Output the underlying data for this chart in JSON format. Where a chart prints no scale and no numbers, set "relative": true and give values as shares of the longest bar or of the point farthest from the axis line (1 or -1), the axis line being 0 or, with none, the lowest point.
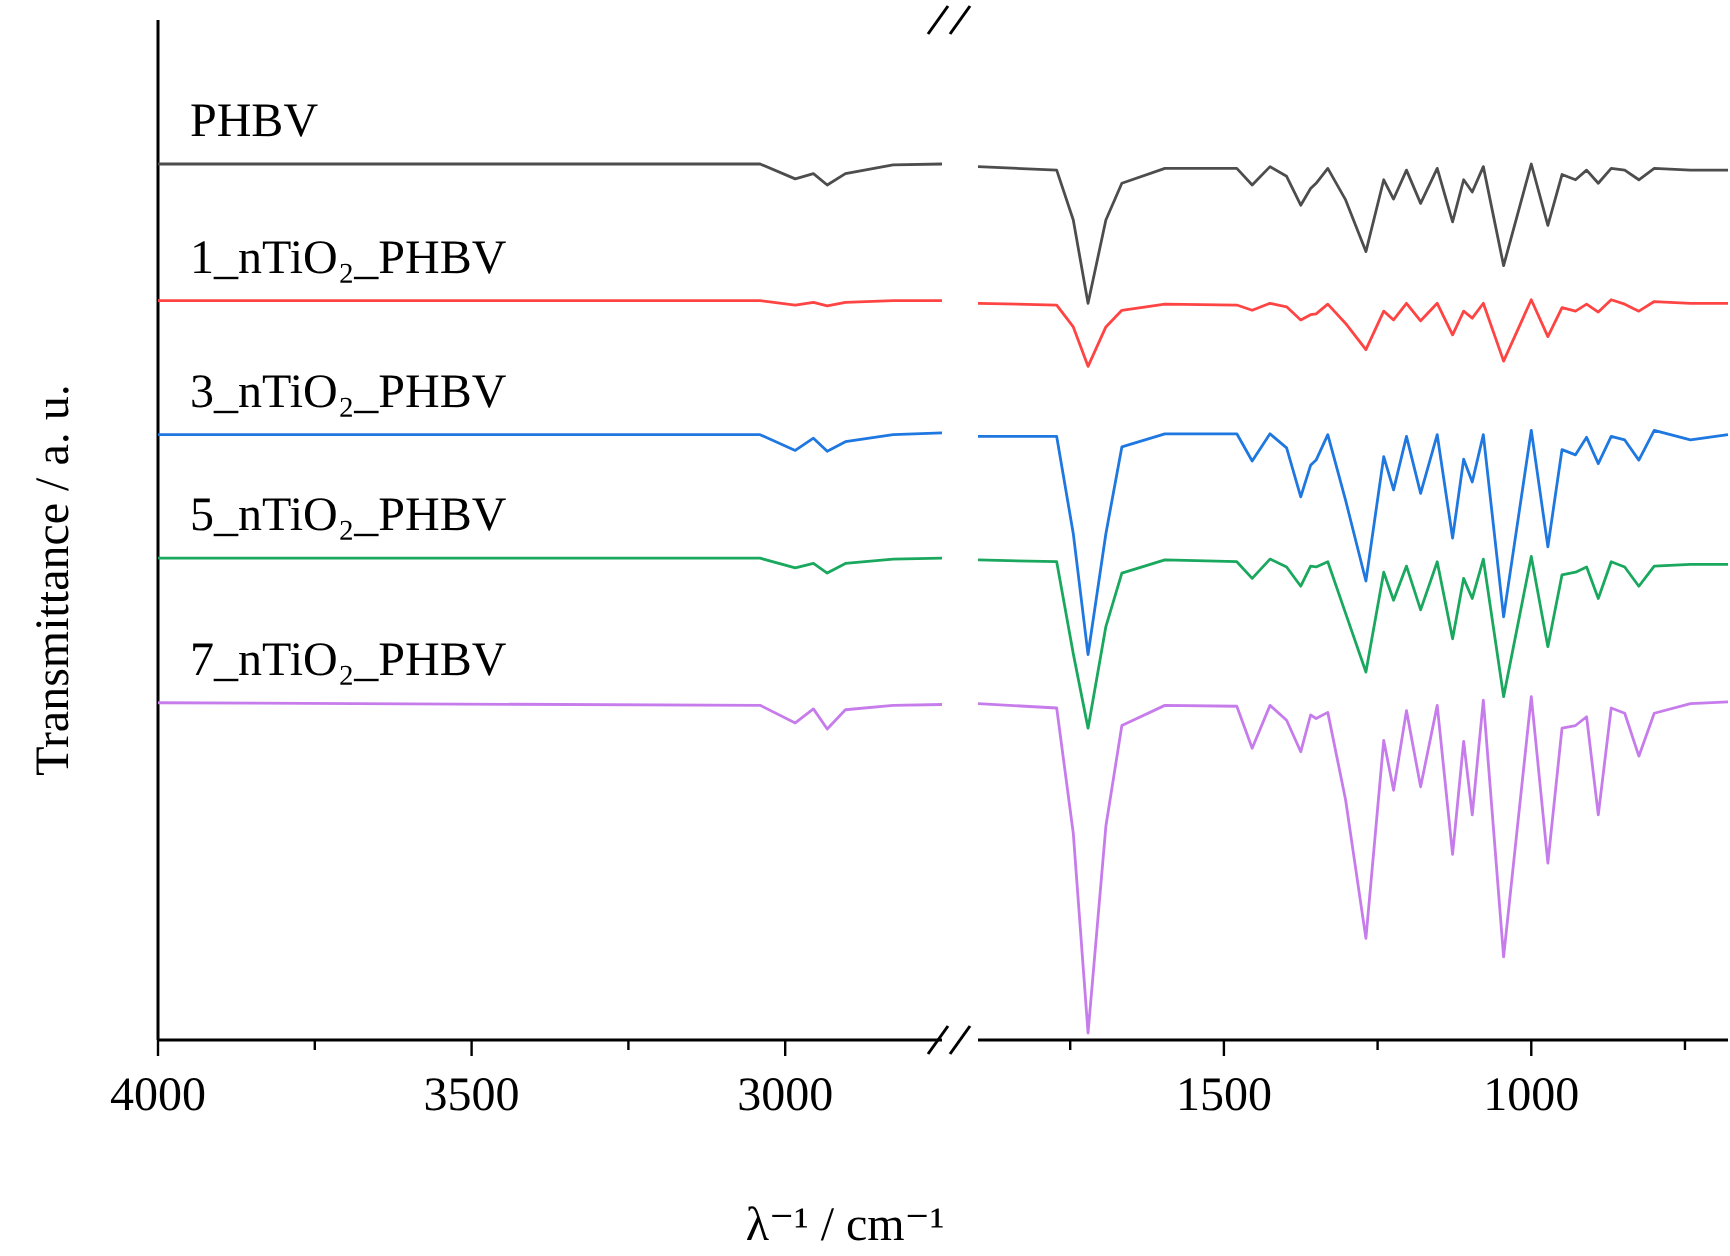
{
  "chart_data": [
    {
      "type": "line",
      "ylabel": "Transmittance / a. u.",
      "relative": true,
      "xlim": [
        4000,
        2750
      ],
      "xticks": [
        4000,
        {
          "value": 3750,
          "label": null
        },
        3500,
        {
          "value": 3250,
          "label": null
        },
        3000
      ],
      "x": [
        4000,
        3040,
        2984,
        2955,
        2933,
        2904,
        2828,
        2750
      ],
      "series": [
        {
          "name": "PHBV",
          "color": "#4d4d4d",
          "values": [
            1,
            1,
            0.983,
            0.989,
            0.976,
            0.989,
            0.999,
            1
          ]
        },
        {
          "name": "1_nTiO₂_PHBV",
          "color": "#ff4444",
          "values": [
            0.844,
            0.844,
            0.839,
            0.842,
            0.838,
            0.842,
            0.844,
            0.844
          ]
        },
        {
          "name": "3_nTiO₂_PHBV",
          "color": "#1f77e0",
          "values": [
            0.691,
            0.691,
            0.673,
            0.687,
            0.672,
            0.683,
            0.691,
            0.693
          ]
        },
        {
          "name": "5_nTiO₂_PHBV",
          "color": "#1aa85e",
          "values": [
            0.55,
            0.55,
            0.539,
            0.544,
            0.533,
            0.544,
            0.549,
            0.55
          ]
        },
        {
          "name": "7_nTiO₂_PHBV",
          "color": "#c77ceb",
          "values": [
            0.385,
            0.382,
            0.362,
            0.378,
            0.355,
            0.377,
            0.382,
            0.383
          ]
        }
      ]
    },
    {
      "type": "line",
      "xlabel": "λ⁻¹ / cm⁻¹",
      "relative": true,
      "xlim": [
        1900,
        680
      ],
      "xticks": [
        {
          "value": 1750,
          "label": null
        },
        1500,
        {
          "value": 1250,
          "label": null
        },
        1000,
        {
          "value": 750,
          "label": null
        }
      ],
      "x": [
        1900,
        1772,
        1745,
        1721,
        1692,
        1666,
        1596,
        1479,
        1454,
        1425,
        1398,
        1375,
        1359,
        1350,
        1331,
        1302,
        1269,
        1240,
        1224,
        1203,
        1180,
        1153,
        1128,
        1110,
        1096,
        1078,
        1045,
        1000,
        973,
        950,
        928,
        910,
        891,
        870,
        848,
        825,
        800,
        741,
        680
      ],
      "series": [
        {
          "color": "#4d4d4d",
          "values": [
            0.997,
            0.993,
            0.936,
            0.841,
            0.936,
            0.978,
            0.995,
            0.995,
            0.976,
            0.997,
            0.986,
            0.953,
            0.972,
            0.978,
            0.995,
            0.959,
            0.9,
            0.982,
            0.96,
            0.993,
            0.955,
            0.995,
            0.934,
            0.982,
            0.968,
            0.997,
            0.884,
            1.0,
            0.93,
            0.988,
            0.982,
            0.993,
            0.978,
            0.995,
            0.993,
            0.982,
            0.995,
            0.993,
            0.993
          ]
        },
        {
          "color": "#ff4444",
          "values": [
            0.841,
            0.839,
            0.814,
            0.769,
            0.814,
            0.833,
            0.84,
            0.839,
            0.833,
            0.841,
            0.837,
            0.822,
            0.828,
            0.829,
            0.84,
            0.818,
            0.788,
            0.832,
            0.822,
            0.841,
            0.821,
            0.841,
            0.805,
            0.832,
            0.824,
            0.841,
            0.775,
            0.845,
            0.803,
            0.836,
            0.832,
            0.84,
            0.831,
            0.845,
            0.84,
            0.832,
            0.843,
            0.841,
            0.841
          ]
        },
        {
          "color": "#1f77e0",
          "values": [
            0.689,
            0.689,
            0.578,
            0.44,
            0.578,
            0.677,
            0.692,
            0.692,
            0.661,
            0.692,
            0.676,
            0.62,
            0.656,
            0.662,
            0.691,
            0.616,
            0.524,
            0.666,
            0.628,
            0.689,
            0.624,
            0.691,
            0.573,
            0.663,
            0.637,
            0.691,
            0.483,
            0.696,
            0.563,
            0.674,
            0.668,
            0.688,
            0.658,
            0.689,
            0.685,
            0.662,
            0.696,
            0.685,
            0.691
          ]
        },
        {
          "color": "#1aa85e",
          "values": [
            0.548,
            0.546,
            0.441,
            0.356,
            0.472,
            0.533,
            0.548,
            0.546,
            0.527,
            0.549,
            0.54,
            0.518,
            0.541,
            0.54,
            0.546,
            0.487,
            0.42,
            0.534,
            0.502,
            0.541,
            0.491,
            0.546,
            0.458,
            0.527,
            0.504,
            0.549,
            0.392,
            0.552,
            0.449,
            0.531,
            0.534,
            0.54,
            0.504,
            0.546,
            0.54,
            0.518,
            0.541,
            0.543,
            0.543
          ]
        },
        {
          "color": "#c77ceb",
          "values": [
            0.384,
            0.379,
            0.236,
            0.008,
            0.244,
            0.359,
            0.382,
            0.381,
            0.333,
            0.382,
            0.365,
            0.329,
            0.371,
            0.367,
            0.374,
            0.274,
            0.116,
            0.342,
            0.285,
            0.376,
            0.289,
            0.382,
            0.212,
            0.341,
            0.257,
            0.388,
            0.095,
            0.392,
            0.202,
            0.356,
            0.359,
            0.369,
            0.257,
            0.379,
            0.373,
            0.324,
            0.373,
            0.384,
            0.386
          ]
        }
      ]
    }
  ]
}
